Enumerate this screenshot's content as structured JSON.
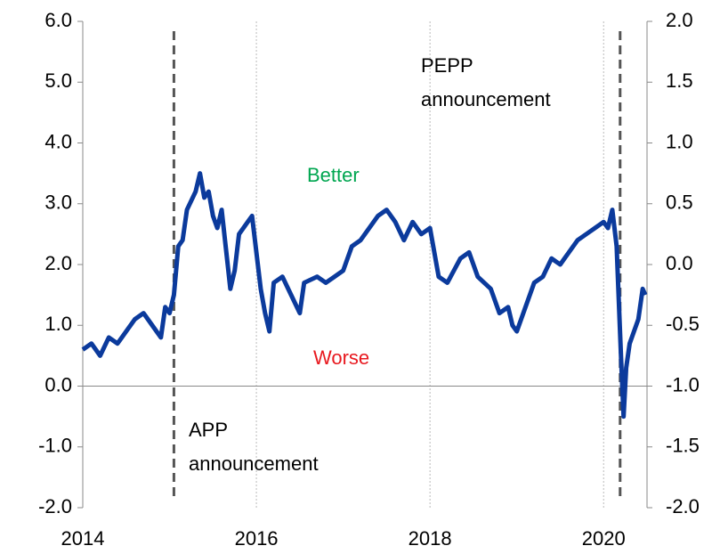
{
  "chart_data": {
    "type": "line",
    "x": [
      2014.0,
      2014.1,
      2014.2,
      2014.3,
      2014.4,
      2014.5,
      2014.6,
      2014.7,
      2014.8,
      2014.9,
      2014.95,
      2015.0,
      2015.05,
      2015.1,
      2015.15,
      2015.2,
      2015.3,
      2015.35,
      2015.4,
      2015.45,
      2015.5,
      2015.55,
      2015.6,
      2015.7,
      2015.75,
      2015.8,
      2015.9,
      2015.95,
      2016.0,
      2016.05,
      2016.1,
      2016.15,
      2016.2,
      2016.3,
      2016.4,
      2016.5,
      2016.55,
      2016.7,
      2016.8,
      2016.9,
      2017.0,
      2017.1,
      2017.2,
      2017.3,
      2017.4,
      2017.5,
      2017.6,
      2017.7,
      2017.8,
      2017.9,
      2018.0,
      2018.1,
      2018.2,
      2018.35,
      2018.45,
      2018.55,
      2018.7,
      2018.8,
      2018.9,
      2018.95,
      2019.0,
      2019.1,
      2019.2,
      2019.3,
      2019.4,
      2019.5,
      2019.6,
      2019.7,
      2019.8,
      2019.9,
      2020.0,
      2020.05,
      2020.1,
      2020.15,
      2020.2,
      2020.23,
      2020.26,
      2020.3,
      2020.35,
      2020.4,
      2020.45,
      2020.48
    ],
    "series": [
      {
        "color": "#0b3a9c",
        "values": [
          0.6,
          0.7,
          0.5,
          0.8,
          0.7,
          0.9,
          1.1,
          1.2,
          1.0,
          0.8,
          1.3,
          1.2,
          1.5,
          2.3,
          2.4,
          2.9,
          3.2,
          3.5,
          3.1,
          3.2,
          2.8,
          2.6,
          2.9,
          1.6,
          1.9,
          2.5,
          2.7,
          2.8,
          2.2,
          1.6,
          1.2,
          0.9,
          1.7,
          1.8,
          1.5,
          1.2,
          1.7,
          1.8,
          1.7,
          1.8,
          1.9,
          2.3,
          2.4,
          2.6,
          2.8,
          2.9,
          2.7,
          2.4,
          2.7,
          2.5,
          2.6,
          1.8,
          1.7,
          2.1,
          2.2,
          1.8,
          1.6,
          1.2,
          1.3,
          1.0,
          0.9,
          1.3,
          1.7,
          1.8,
          2.1,
          2.0,
          2.2,
          2.4,
          2.5,
          2.6,
          2.7,
          2.6,
          2.9,
          2.3,
          0.5,
          -0.5,
          0.3,
          0.7,
          0.9,
          1.1,
          1.6,
          1.5
        ]
      }
    ],
    "xlim": [
      2014,
      2020.5
    ],
    "xticks": [
      2014,
      2016,
      2018,
      2020
    ],
    "ylim": [
      -2,
      6
    ],
    "yticks": [
      {
        "value": -2,
        "label": "-2.0"
      },
      {
        "value": -1,
        "label": "-1.0"
      },
      {
        "value": 0,
        "label": "0.0"
      },
      {
        "value": 1,
        "label": "1.0"
      },
      {
        "value": 2,
        "label": "2.0"
      },
      {
        "value": 3,
        "label": "3.0"
      },
      {
        "value": 4,
        "label": "4.0"
      },
      {
        "value": 5,
        "label": "5.0"
      },
      {
        "value": 6,
        "label": "6.0"
      }
    ],
    "y2lim": [
      -2,
      2
    ],
    "y2ticks": [
      {
        "value": -2,
        "label": "-2.0"
      },
      {
        "value": -1.5,
        "label": "-1.5"
      },
      {
        "value": -1,
        "label": "-1.0"
      },
      {
        "value": -0.5,
        "label": "-0.5"
      },
      {
        "value": 0,
        "label": "0.0"
      },
      {
        "value": 0.5,
        "label": "0.5"
      },
      {
        "value": 1,
        "label": "1.0"
      },
      {
        "value": 1.5,
        "label": "1.5"
      },
      {
        "value": 2,
        "label": "2.0"
      }
    ],
    "grid": true,
    "events": [
      {
        "x": 2015.05,
        "label": "APP\nannouncement"
      },
      {
        "x": 2020.19,
        "label": "PEPP\nannouncement"
      }
    ],
    "annotations": [
      {
        "text": "Better",
        "color": "#00a650"
      },
      {
        "text": "Worse",
        "color": "#e8191f"
      }
    ]
  }
}
